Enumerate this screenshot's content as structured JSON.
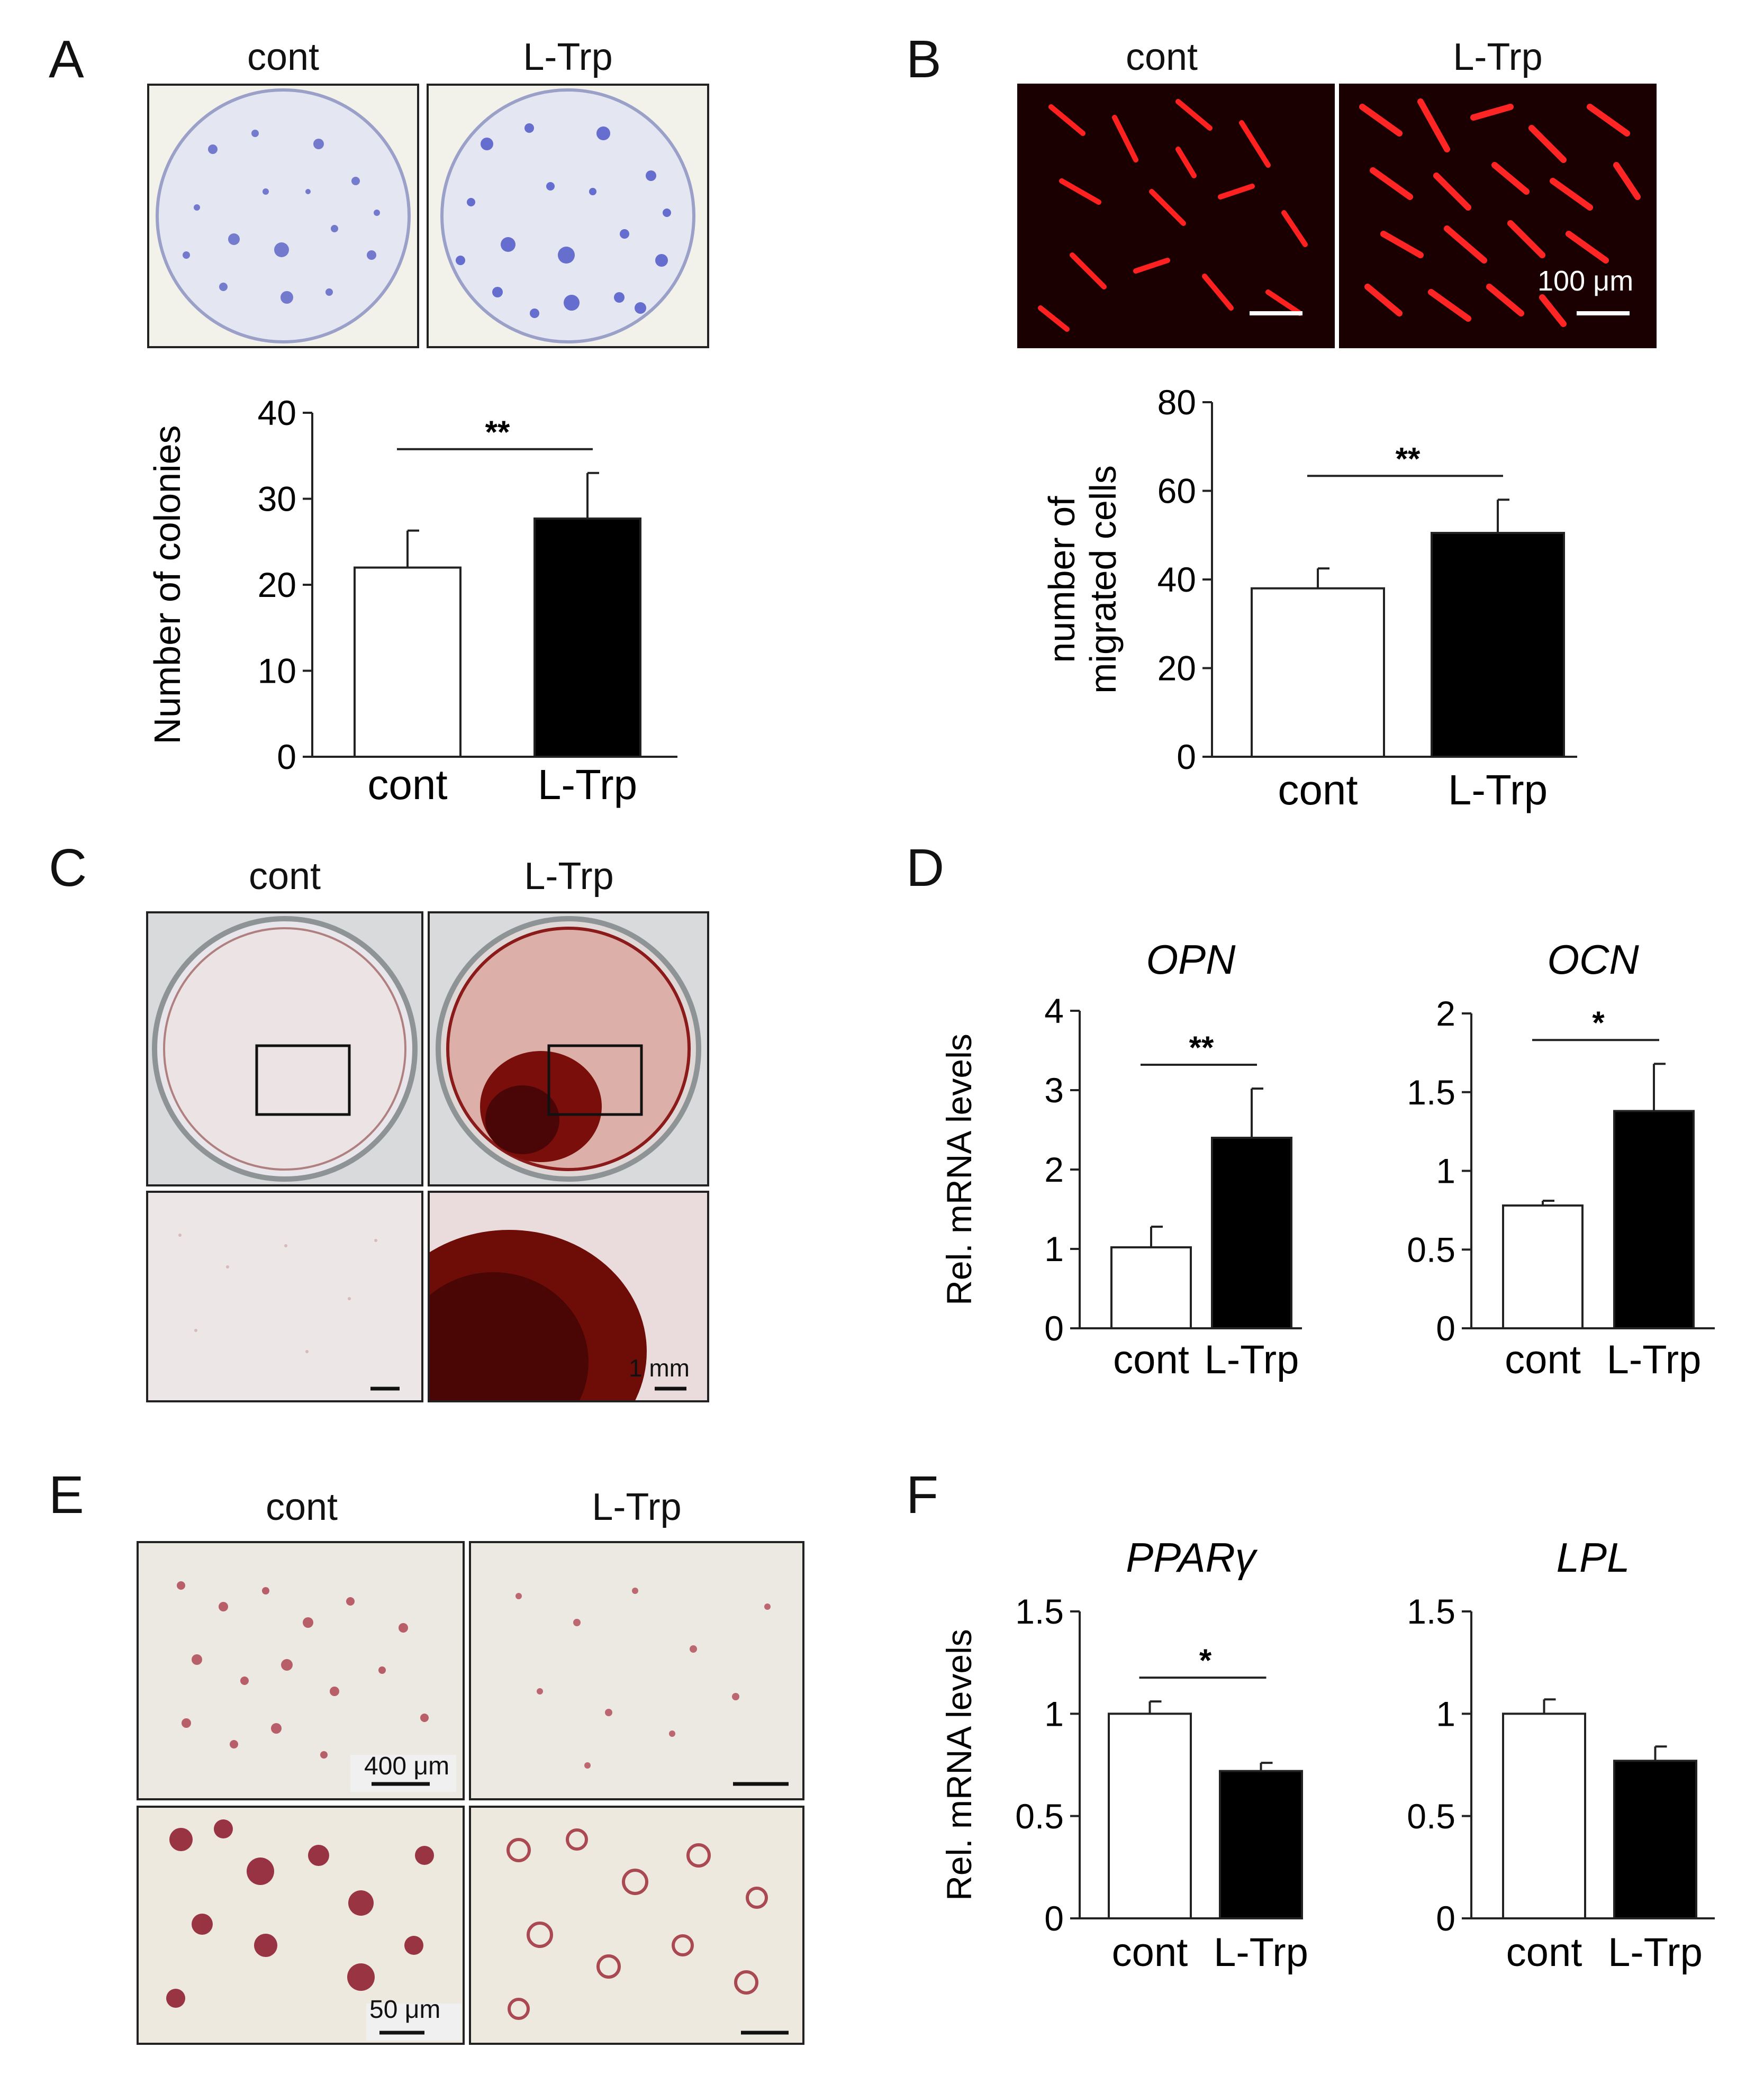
{
  "panels": {
    "A": {
      "label": "A",
      "cond_labels": [
        "cont",
        "L-Trp"
      ]
    },
    "B": {
      "label": "B",
      "cond_labels": [
        "cont",
        "L-Trp"
      ],
      "scalebar": "100 μm"
    },
    "C": {
      "label": "C",
      "cond_labels": [
        "cont",
        "L-Trp"
      ],
      "scalebar": "1 mm"
    },
    "D": {
      "label": "D"
    },
    "E": {
      "label": "E",
      "cond_labels": [
        "cont",
        "L-Trp"
      ],
      "scalebar_top": "400 μm",
      "scalebar_bottom": "50 μm"
    },
    "F": {
      "label": "F"
    }
  },
  "colors": {
    "cont": "#ffffff",
    "ltrp": "#000000",
    "fluor": "#ff1a1a",
    "stain_blue": "#5560c8",
    "stain_red": "#8b1a1a"
  },
  "chart_data": [
    {
      "id": "A",
      "type": "bar",
      "categories": [
        "cont",
        "L-Trp"
      ],
      "values": [
        22,
        27.7
      ],
      "errors": [
        4.3,
        5.3
      ],
      "ylabel": "Number of colonies",
      "ylim": [
        0,
        40
      ],
      "yticks": [
        "0",
        "10",
        "20",
        "30",
        "40"
      ],
      "significance": "**",
      "title": ""
    },
    {
      "id": "B",
      "type": "bar",
      "categories": [
        "cont",
        "L-Trp"
      ],
      "values": [
        38,
        50.5
      ],
      "errors": [
        4.5,
        7.5
      ],
      "ylabel_lines": [
        "number of",
        "migrated cells"
      ],
      "ylim": [
        0,
        80
      ],
      "yticks": [
        "0",
        "20",
        "40",
        "60",
        "80"
      ],
      "significance": "**",
      "title": ""
    },
    {
      "id": "D1",
      "type": "bar",
      "categories": [
        "cont",
        "L-Trp"
      ],
      "values": [
        1.02,
        2.4
      ],
      "errors": [
        0.26,
        0.62
      ],
      "title": "OPN",
      "ylabel": "Rel. mRNA levels",
      "ylim": [
        0,
        4
      ],
      "yticks": [
        "0",
        "1",
        "2",
        "3",
        "4"
      ],
      "significance": "**"
    },
    {
      "id": "D2",
      "type": "bar",
      "categories": [
        "cont",
        "L-Trp"
      ],
      "values": [
        0.78,
        1.38
      ],
      "errors": [
        0.03,
        0.3
      ],
      "title": "OCN",
      "ylabel": "",
      "ylim": [
        0,
        2
      ],
      "yticks": [
        "0",
        "0.5",
        "1",
        "1.5",
        "2"
      ],
      "significance": "*"
    },
    {
      "id": "F1",
      "type": "bar",
      "categories": [
        "cont",
        "L-Trp"
      ],
      "values": [
        1.0,
        0.72
      ],
      "errors": [
        0.06,
        0.04
      ],
      "title": "PPARγ",
      "ylabel": "Rel. mRNA levels",
      "ylim": [
        0,
        1.5
      ],
      "yticks": [
        "0",
        "0.5",
        "1",
        "1.5"
      ],
      "significance": "*"
    },
    {
      "id": "F2",
      "type": "bar",
      "categories": [
        "cont",
        "L-Trp"
      ],
      "values": [
        1.0,
        0.77
      ],
      "errors": [
        0.07,
        0.07
      ],
      "title": "LPL",
      "ylabel": "",
      "ylim": [
        0,
        1.5
      ],
      "yticks": [
        "0",
        "0.5",
        "1",
        "1.5"
      ],
      "significance": ""
    }
  ]
}
